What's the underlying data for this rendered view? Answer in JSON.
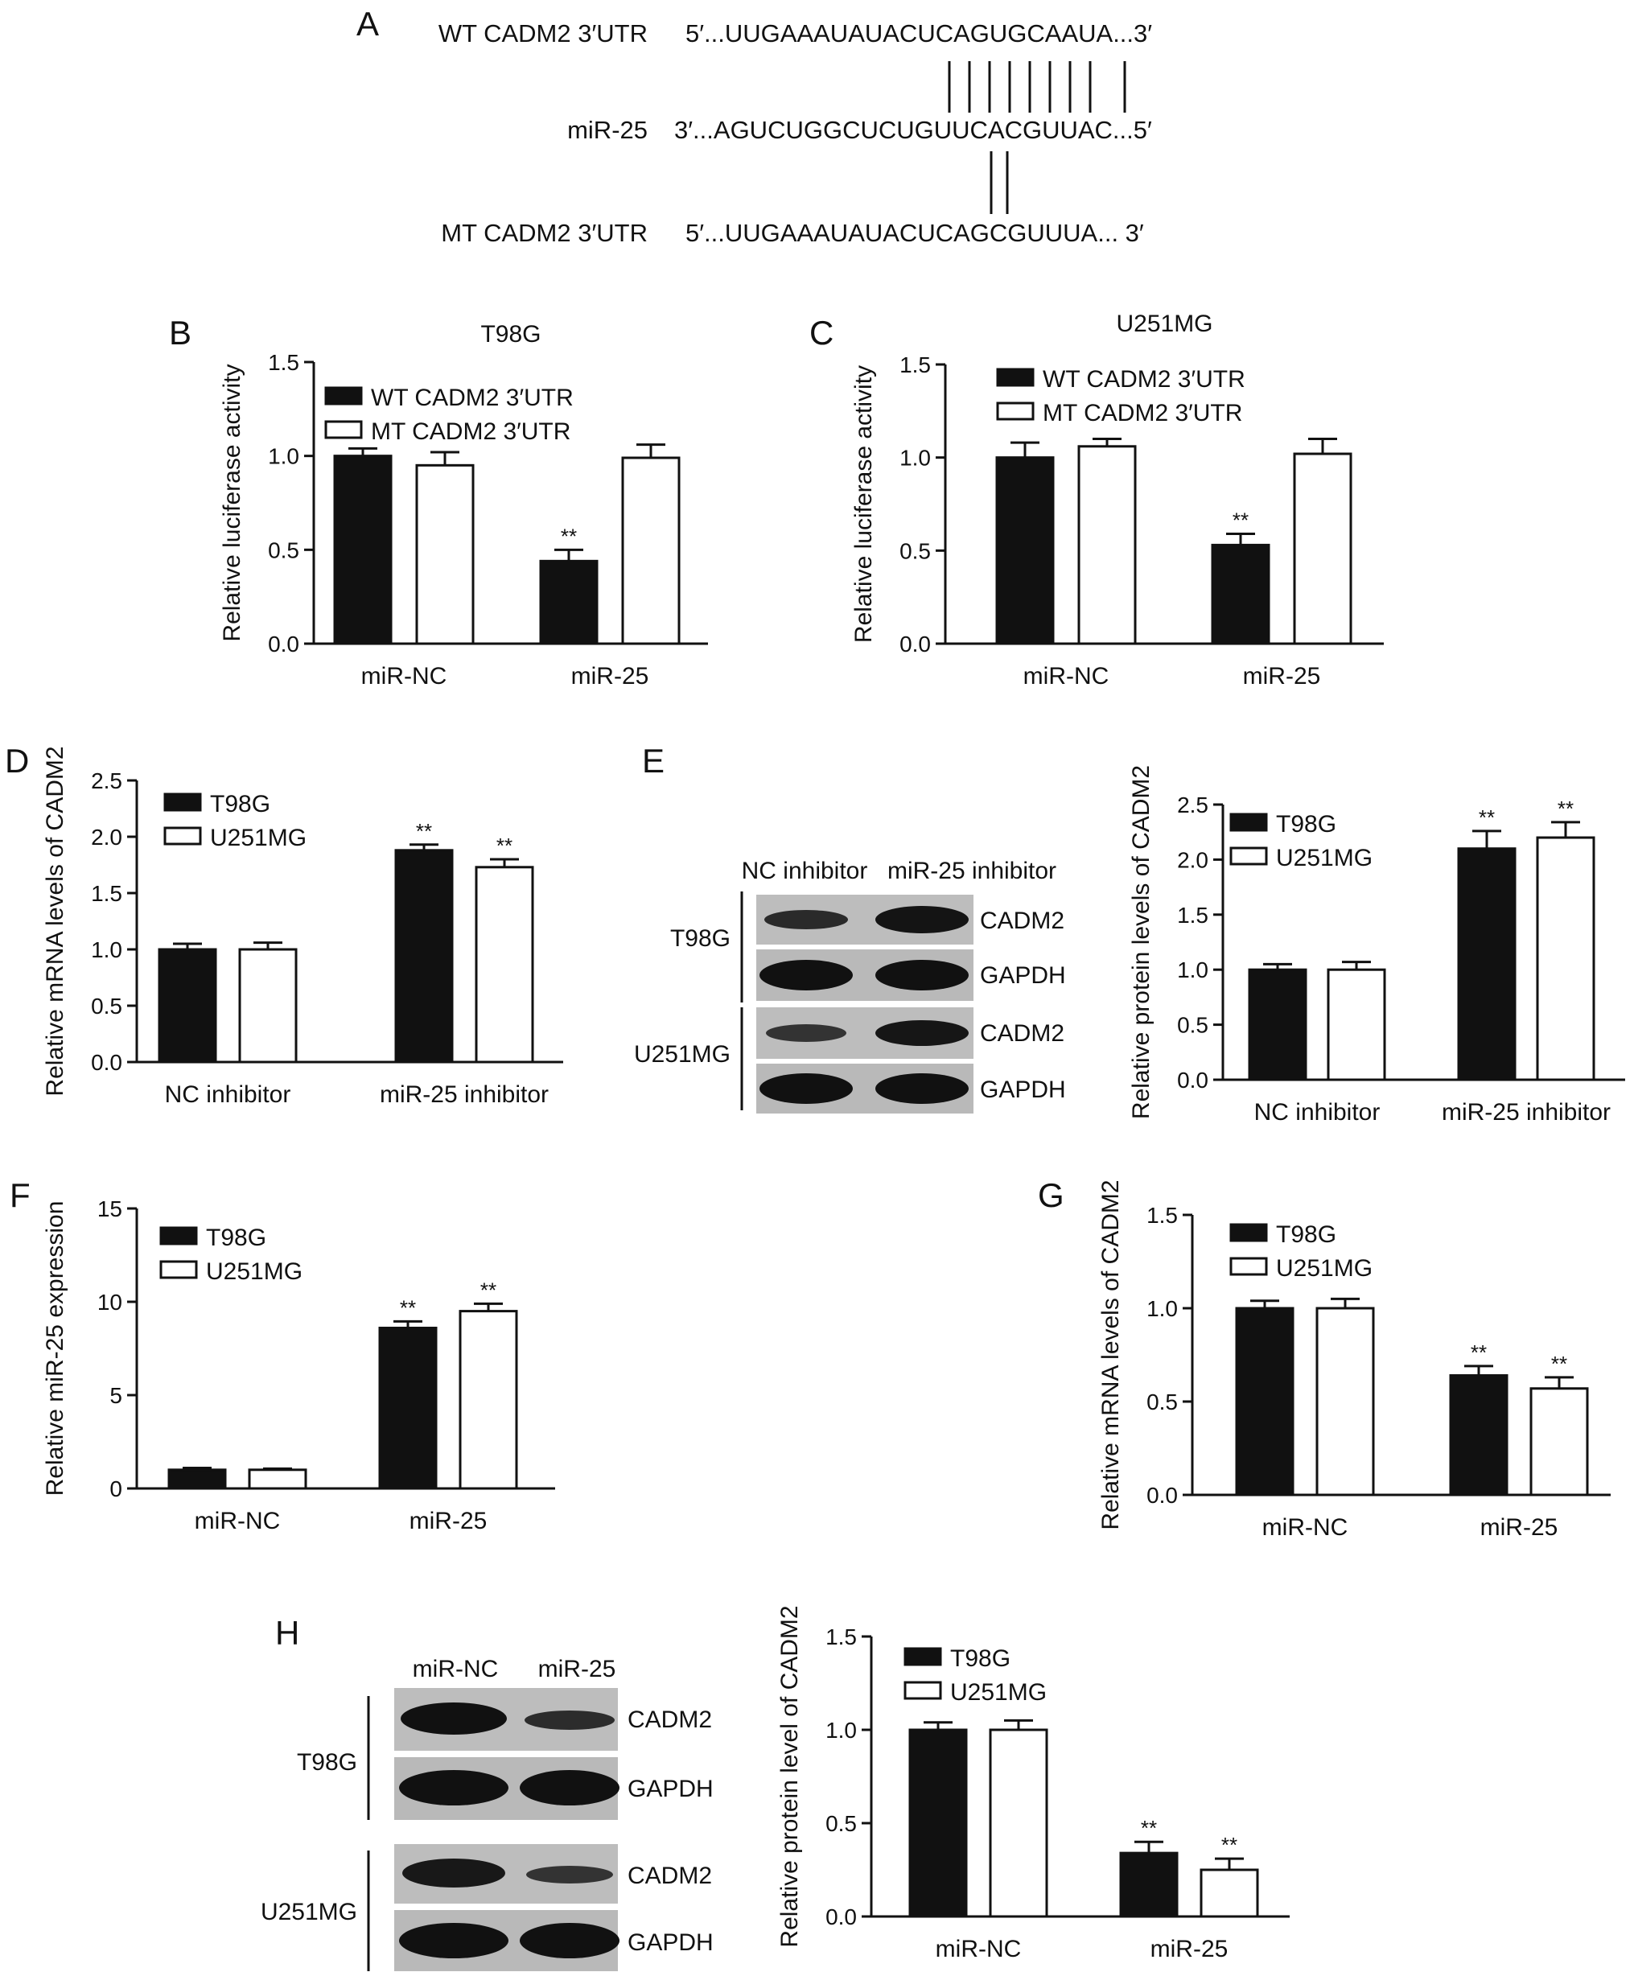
{
  "panel_a": {
    "letter": "A",
    "rows": [
      {
        "label": "WT CADM2 3′UTR",
        "seq": "5′...UUGAAAUAUACUCAGUGCAAUA...3′"
      },
      {
        "label": "miR-25",
        "seq": "3′...AGUCUGGCUCUGUUCACGUUAC...5′"
      },
      {
        "label": "MT CADM2 3′UTR",
        "seq": "5′...UUGAAAUAUACUCAGCGUUUA... 3′"
      }
    ]
  },
  "blot_e": {
    "col_labels": [
      "NC inhibitor",
      "miR-25 inhibitor"
    ],
    "groups": [
      "T98G",
      "U251MG"
    ],
    "band_labels": [
      "CADM2",
      "GAPDH",
      "CADM2",
      "GAPDH"
    ]
  },
  "blot_h": {
    "col_labels": [
      "miR-NC",
      "miR-25"
    ],
    "groups": [
      "T98G",
      "U251MG"
    ],
    "band_labels": [
      "CADM2",
      "GAPDH",
      "CADM2",
      "GAPDH"
    ]
  },
  "chart_data": [
    {
      "panel": "B",
      "type": "bar",
      "title": "T98G",
      "ylabel": "Relative luciferase activity",
      "categories": [
        "miR-NC",
        "miR-25"
      ],
      "ylim": [
        0,
        1.5
      ],
      "yticks": [
        "0.0",
        "0.5",
        "1.0",
        "1.5"
      ],
      "series": [
        {
          "name": "WT CADM2 3′UTR",
          "values": [
            1.0,
            0.44
          ],
          "errors": [
            0.04,
            0.06
          ],
          "sig": [
            "",
            "**"
          ],
          "color": "#111111"
        },
        {
          "name": "MT CADM2 3′UTR",
          "values": [
            0.95,
            0.99
          ],
          "errors": [
            0.07,
            0.07
          ],
          "sig": [
            "",
            ""
          ],
          "color": "#ffffff"
        }
      ]
    },
    {
      "panel": "C",
      "type": "bar",
      "title": "U251MG",
      "ylabel": "Relative luciferase activity",
      "categories": [
        "miR-NC",
        "miR-25"
      ],
      "ylim": [
        0,
        1.5
      ],
      "yticks": [
        "0.0",
        "0.5",
        "1.0",
        "1.5"
      ],
      "series": [
        {
          "name": "WT CADM2 3′UTR",
          "values": [
            1.0,
            0.53
          ],
          "errors": [
            0.08,
            0.06
          ],
          "sig": [
            "",
            "**"
          ],
          "color": "#111111"
        },
        {
          "name": "MT CADM2 3′UTR",
          "values": [
            1.06,
            1.02
          ],
          "errors": [
            0.04,
            0.08
          ],
          "sig": [
            "",
            ""
          ],
          "color": "#ffffff"
        }
      ]
    },
    {
      "panel": "D",
      "type": "bar",
      "title": "",
      "ylabel": "Relative mRNA levels of CADM2",
      "categories": [
        "NC inhibitor",
        "miR-25 inhibitor"
      ],
      "ylim": [
        0,
        2.5
      ],
      "yticks": [
        "0.0",
        "0.5",
        "1.0",
        "1.5",
        "2.0",
        "2.5"
      ],
      "series": [
        {
          "name": "T98G",
          "values": [
            1.0,
            1.88
          ],
          "errors": [
            0.05,
            0.05
          ],
          "sig": [
            "",
            "**"
          ],
          "color": "#111111"
        },
        {
          "name": "U251MG",
          "values": [
            1.0,
            1.73
          ],
          "errors": [
            0.06,
            0.07
          ],
          "sig": [
            "",
            "**"
          ],
          "color": "#ffffff"
        }
      ]
    },
    {
      "panel": "E",
      "type": "bar",
      "title": "",
      "ylabel": "Relative protein levels of CADM2",
      "categories": [
        "NC inhibitor",
        "miR-25 inhibitor"
      ],
      "ylim": [
        0,
        2.5
      ],
      "yticks": [
        "0.0",
        "0.5",
        "1.0",
        "1.5",
        "2.0",
        "2.5"
      ],
      "series": [
        {
          "name": "T98G",
          "values": [
            1.0,
            2.1
          ],
          "errors": [
            0.05,
            0.16
          ],
          "sig": [
            "",
            "**"
          ],
          "color": "#111111"
        },
        {
          "name": "U251MG",
          "values": [
            1.0,
            2.2
          ],
          "errors": [
            0.07,
            0.14
          ],
          "sig": [
            "",
            "**"
          ],
          "color": "#ffffff"
        }
      ]
    },
    {
      "panel": "F",
      "type": "bar",
      "title": "",
      "ylabel": "Relative miR-25 expression",
      "categories": [
        "miR-NC",
        "miR-25"
      ],
      "ylim": [
        0,
        15
      ],
      "yticks": [
        "0",
        "5",
        "10",
        "15"
      ],
      "series": [
        {
          "name": "T98G",
          "values": [
            1.0,
            8.6
          ],
          "errors": [
            0.1,
            0.35
          ],
          "sig": [
            "",
            "**"
          ],
          "color": "#111111"
        },
        {
          "name": "U251MG",
          "values": [
            1.0,
            9.5
          ],
          "errors": [
            0.06,
            0.4
          ],
          "sig": [
            "",
            "**"
          ],
          "color": "#ffffff"
        }
      ]
    },
    {
      "panel": "G",
      "type": "bar",
      "title": "",
      "ylabel": "Relative mRNA levels of CADM2",
      "categories": [
        "miR-NC",
        "miR-25"
      ],
      "ylim": [
        0,
        1.5
      ],
      "yticks": [
        "0.0",
        "0.5",
        "1.0",
        "1.5"
      ],
      "series": [
        {
          "name": "T98G",
          "values": [
            1.0,
            0.64
          ],
          "errors": [
            0.04,
            0.05
          ],
          "sig": [
            "",
            "**"
          ],
          "color": "#111111"
        },
        {
          "name": "U251MG",
          "values": [
            1.0,
            0.57
          ],
          "errors": [
            0.05,
            0.06
          ],
          "sig": [
            "",
            "**"
          ],
          "color": "#ffffff"
        }
      ]
    },
    {
      "panel": "H",
      "type": "bar",
      "title": "",
      "ylabel": "Relative protein level of CADM2",
      "categories": [
        "miR-NC",
        "miR-25"
      ],
      "ylim": [
        0,
        1.5
      ],
      "yticks": [
        "0.0",
        "0.5",
        "1.0",
        "1.5"
      ],
      "series": [
        {
          "name": "T98G",
          "values": [
            1.0,
            0.34
          ],
          "errors": [
            0.04,
            0.06
          ],
          "sig": [
            "",
            "**"
          ],
          "color": "#111111"
        },
        {
          "name": "U251MG",
          "values": [
            1.0,
            0.25
          ],
          "errors": [
            0.05,
            0.06
          ],
          "sig": [
            "",
            "**"
          ],
          "color": "#ffffff"
        }
      ]
    }
  ]
}
